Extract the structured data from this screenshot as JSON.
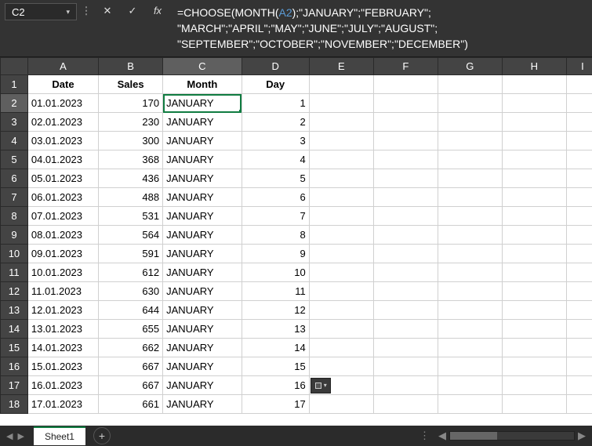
{
  "formula_bar": {
    "cell_ref": "C2",
    "formula_plain": "=CHOOSE(MONTH(A2);\"JANUARY\";\"FEBRUARY\"; \"MARCH\";\"APRIL\";\"MAY\";\"JUNE\";\"JULY\";\"AUGUST\"; \"SEPTEMBER\";\"OCTOBER\";\"NOVEMBER\";\"DECEMBER\")",
    "cancel_icon": "✕",
    "confirm_icon": "✓",
    "fx_icon": "fx",
    "sep_icon": "⋮",
    "dropdown_icon": "▾"
  },
  "columns": [
    "A",
    "B",
    "C",
    "D",
    "E",
    "F",
    "G",
    "H",
    "I"
  ],
  "row_numbers": [
    1,
    2,
    3,
    4,
    5,
    6,
    7,
    8,
    9,
    10,
    11,
    12,
    13,
    14,
    15,
    16,
    17,
    18
  ],
  "headers": {
    "date": "Date",
    "sales": "Sales",
    "month": "Month",
    "day": "Day"
  },
  "rows": [
    {
      "date": "01.01.2023",
      "sales": 170,
      "month": "JANUARY",
      "day": 1
    },
    {
      "date": "02.01.2023",
      "sales": 230,
      "month": "JANUARY",
      "day": 2
    },
    {
      "date": "03.01.2023",
      "sales": 300,
      "month": "JANUARY",
      "day": 3
    },
    {
      "date": "04.01.2023",
      "sales": 368,
      "month": "JANUARY",
      "day": 4
    },
    {
      "date": "05.01.2023",
      "sales": 436,
      "month": "JANUARY",
      "day": 5
    },
    {
      "date": "06.01.2023",
      "sales": 488,
      "month": "JANUARY",
      "day": 6
    },
    {
      "date": "07.01.2023",
      "sales": 531,
      "month": "JANUARY",
      "day": 7
    },
    {
      "date": "08.01.2023",
      "sales": 564,
      "month": "JANUARY",
      "day": 8
    },
    {
      "date": "09.01.2023",
      "sales": 591,
      "month": "JANUARY",
      "day": 9
    },
    {
      "date": "10.01.2023",
      "sales": 612,
      "month": "JANUARY",
      "day": 10
    },
    {
      "date": "11.01.2023",
      "sales": 630,
      "month": "JANUARY",
      "day": 11
    },
    {
      "date": "12.01.2023",
      "sales": 644,
      "month": "JANUARY",
      "day": 12
    },
    {
      "date": "13.01.2023",
      "sales": 655,
      "month": "JANUARY",
      "day": 13
    },
    {
      "date": "14.01.2023",
      "sales": 662,
      "month": "JANUARY",
      "day": 14
    },
    {
      "date": "15.01.2023",
      "sales": 667,
      "month": "JANUARY",
      "day": 15
    },
    {
      "date": "16.01.2023",
      "sales": 667,
      "month": "JANUARY",
      "day": 16
    },
    {
      "date": "17.01.2023",
      "sales": 661,
      "month": "JANUARY",
      "day": 17
    }
  ],
  "active": {
    "col": "C",
    "row": 2
  },
  "tabs": {
    "active": "Sheet1",
    "new_icon": "+",
    "nav_left": "◀",
    "nav_right": "▶",
    "vdots": "⋮"
  },
  "colors": {
    "header_bg": "#444444",
    "formula_bg": "#333333",
    "accent": "#107c41",
    "ref_color": "#5b9bd5",
    "grid_border": "#d0d0d0"
  }
}
